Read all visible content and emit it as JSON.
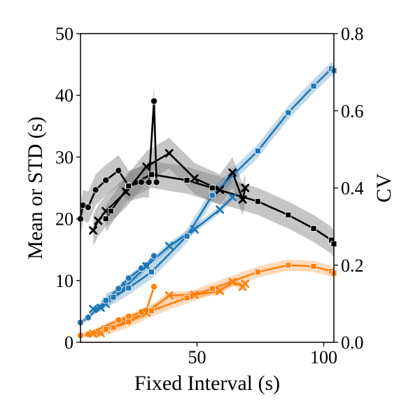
{
  "chart_data": {
    "type": "line",
    "xlabel": "Fixed Interval (s)",
    "ylabel_left": "Mean or STD (s)",
    "ylabel_right": "CV",
    "xlim": [
      4,
      104
    ],
    "ylim_left": [
      0,
      50
    ],
    "ylim_right": [
      0,
      0.8
    ],
    "xticks": [
      50,
      100
    ],
    "yticks_left": [
      0,
      10,
      20,
      30,
      40,
      50
    ],
    "yticks_right": [
      0.0,
      0.2,
      0.4,
      0.6,
      0.8
    ],
    "grid": false,
    "legend": "none",
    "colors": {
      "mean": "#1f77b4",
      "std": "#ff7f0e",
      "cv": "#000000",
      "band_cv": "#808080"
    },
    "series": [
      {
        "group": "circle",
        "axis": "left",
        "color": "#1f77b4",
        "marker": "circle",
        "x": [
          4,
          7,
          19,
          23,
          28,
          30,
          33
        ],
        "y": [
          3.2,
          4.0,
          8.7,
          10.4,
          12.0,
          12.5,
          14.0
        ],
        "band": 0.5
      },
      {
        "group": "circle",
        "axis": "left",
        "color": "#ff7f0e",
        "marker": "circle",
        "x": [
          4,
          7,
          19,
          23,
          28,
          30,
          33
        ],
        "y": [
          1.1,
          1.3,
          3.6,
          4.2,
          4.9,
          5.2,
          9.0
        ],
        "band": 0.4
      },
      {
        "group": "circle",
        "axis": "right",
        "color": "#000000",
        "marker": "circle",
        "x": [
          4,
          5,
          7,
          10,
          14,
          19,
          23,
          28,
          31,
          33,
          34
        ],
        "y": [
          0.32,
          0.355,
          0.35,
          0.395,
          0.42,
          0.445,
          0.405,
          0.415,
          0.415,
          0.625,
          0.415
        ],
        "band": 0.04
      },
      {
        "group": "cross",
        "axis": "left",
        "color": "#1f77b4",
        "marker": "x",
        "x": [
          9,
          12,
          14,
          22,
          30,
          39,
          49,
          59,
          64
        ],
        "y": [
          5.4,
          5.6,
          6.2,
          9.1,
          12.3,
          15.6,
          18.3,
          21.5,
          23.5
        ],
        "band": 0.6
      },
      {
        "group": "cross",
        "axis": "left",
        "color": "#ff7f0e",
        "marker": "x",
        "x": [
          9,
          12,
          14,
          22,
          30,
          39,
          49,
          59,
          64,
          68,
          69
        ],
        "y": [
          1.4,
          1.5,
          2.1,
          3.4,
          4.8,
          7.6,
          7.7,
          8.3,
          9.8,
          9.0,
          9.5
        ],
        "band": 0.6
      },
      {
        "group": "cross",
        "axis": "right",
        "color": "#000000",
        "marker": "x",
        "x": [
          9,
          11,
          14,
          22,
          30,
          39,
          49,
          59,
          64,
          68,
          69
        ],
        "y": [
          0.29,
          0.315,
          0.34,
          0.39,
          0.455,
          0.49,
          0.425,
          0.395,
          0.44,
          0.37,
          0.4
        ],
        "band": 0.04
      },
      {
        "group": "square",
        "axis": "left",
        "color": "#1f77b4",
        "marker": "square",
        "x": [
          14,
          17,
          23,
          32,
          46,
          56,
          74,
          86,
          96,
          103,
          104
        ],
        "y": [
          6.8,
          7.3,
          8.8,
          11.4,
          17.2,
          23.8,
          31.0,
          37.2,
          41.5,
          44.3,
          44.0
        ],
        "band": 1.1
      },
      {
        "group": "square",
        "axis": "left",
        "color": "#ff7f0e",
        "marker": "square",
        "x": [
          14,
          17,
          23,
          32,
          46,
          56,
          74,
          86,
          96,
          103,
          104
        ],
        "y": [
          2.1,
          2.4,
          3.3,
          5.1,
          7.2,
          8.7,
          11.4,
          12.5,
          12.3,
          11.5,
          11.2
        ],
        "band": 0.9
      },
      {
        "group": "square",
        "axis": "right",
        "color": "#000000",
        "marker": "square",
        "x": [
          14,
          16,
          23,
          32,
          46,
          56,
          74,
          86,
          96,
          103,
          104
        ],
        "y": [
          0.32,
          0.34,
          0.405,
          0.435,
          0.42,
          0.4,
          0.365,
          0.33,
          0.295,
          0.265,
          0.255
        ],
        "band": 0.035
      }
    ]
  }
}
